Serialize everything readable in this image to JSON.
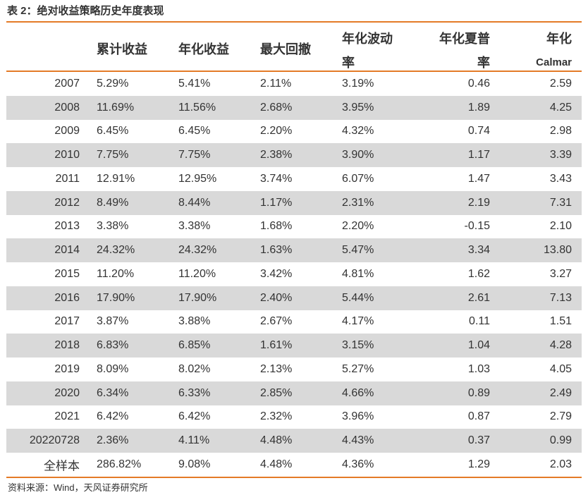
{
  "title": "表 2：绝对收益策略历史年度表现",
  "headers": {
    "cumulative": "累计收益",
    "annual_return": "年化收益",
    "max_drawdown": "最大回撤",
    "volatility_line1": "年化波动",
    "volatility_line2": "率",
    "sharpe_line1": "年化夏普",
    "sharpe_line2": "率",
    "calmar_line1": "年化",
    "calmar_line2": "Calmar"
  },
  "rows": [
    {
      "year": "2007",
      "cumulative": "5.29%",
      "annual": "5.41%",
      "drawdown": "2.11%",
      "vol": "3.19%",
      "sharpe": "0.46",
      "calmar": "2.59"
    },
    {
      "year": "2008",
      "cumulative": "11.69%",
      "annual": "11.56%",
      "drawdown": "2.68%",
      "vol": "3.95%",
      "sharpe": "1.89",
      "calmar": "4.25"
    },
    {
      "year": "2009",
      "cumulative": "6.45%",
      "annual": "6.45%",
      "drawdown": "2.20%",
      "vol": "4.32%",
      "sharpe": "0.74",
      "calmar": "2.98"
    },
    {
      "year": "2010",
      "cumulative": "7.75%",
      "annual": "7.75%",
      "drawdown": "2.38%",
      "vol": "3.90%",
      "sharpe": "1.17",
      "calmar": "3.39"
    },
    {
      "year": "2011",
      "cumulative": "12.91%",
      "annual": "12.95%",
      "drawdown": "3.74%",
      "vol": "6.07%",
      "sharpe": "1.47",
      "calmar": "3.43"
    },
    {
      "year": "2012",
      "cumulative": "8.49%",
      "annual": "8.44%",
      "drawdown": "1.17%",
      "vol": "2.31%",
      "sharpe": "2.19",
      "calmar": "7.31"
    },
    {
      "year": "2013",
      "cumulative": "3.38%",
      "annual": "3.38%",
      "drawdown": "1.68%",
      "vol": "2.20%",
      "sharpe": "-0.15",
      "calmar": "2.10"
    },
    {
      "year": "2014",
      "cumulative": "24.32%",
      "annual": "24.32%",
      "drawdown": "1.63%",
      "vol": "5.47%",
      "sharpe": "3.34",
      "calmar": "13.80"
    },
    {
      "year": "2015",
      "cumulative": "11.20%",
      "annual": "11.20%",
      "drawdown": "3.42%",
      "vol": "4.81%",
      "sharpe": "1.62",
      "calmar": "3.27"
    },
    {
      "year": "2016",
      "cumulative": "17.90%",
      "annual": "17.90%",
      "drawdown": "2.40%",
      "vol": "5.44%",
      "sharpe": "2.61",
      "calmar": "7.13"
    },
    {
      "year": "2017",
      "cumulative": "3.87%",
      "annual": "3.88%",
      "drawdown": "2.67%",
      "vol": "4.17%",
      "sharpe": "0.11",
      "calmar": "1.51"
    },
    {
      "year": "2018",
      "cumulative": "6.83%",
      "annual": "6.85%",
      "drawdown": "1.61%",
      "vol": "3.15%",
      "sharpe": "1.04",
      "calmar": "4.28"
    },
    {
      "year": "2019",
      "cumulative": "8.09%",
      "annual": "8.02%",
      "drawdown": "2.13%",
      "vol": "5.27%",
      "sharpe": "1.03",
      "calmar": "4.05"
    },
    {
      "year": "2020",
      "cumulative": "6.34%",
      "annual": "6.33%",
      "drawdown": "2.85%",
      "vol": "4.66%",
      "sharpe": "0.89",
      "calmar": "2.49"
    },
    {
      "year": "2021",
      "cumulative": "6.42%",
      "annual": "6.42%",
      "drawdown": "2.32%",
      "vol": "3.96%",
      "sharpe": "0.87",
      "calmar": "2.79"
    },
    {
      "year": "20220728",
      "cumulative": "2.36%",
      "annual": "4.11%",
      "drawdown": "4.48%",
      "vol": "4.43%",
      "sharpe": "0.37",
      "calmar": "0.99"
    },
    {
      "year": "全样本",
      "cumulative": "286.82%",
      "annual": "9.08%",
      "drawdown": "4.48%",
      "vol": "4.36%",
      "sharpe": "1.29",
      "calmar": "2.03"
    }
  ],
  "colors": {
    "accent_rule": "#e47b27",
    "shaded_row": "#d9d9d9",
    "text": "#333333"
  },
  "source": "资料来源：Wind，天风证券研究所"
}
